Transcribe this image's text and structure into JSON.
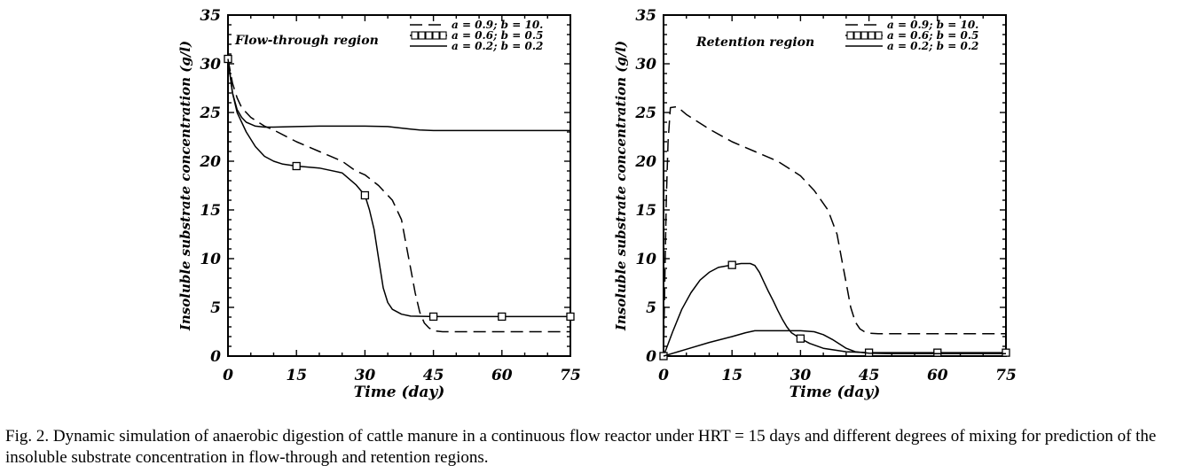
{
  "caption": "Fig. 2. Dynamic simulation of anaerobic digestion of cattle manure in a continuous flow reactor under HRT = 15 days and different degrees of mixing for prediction of the insoluble substrate concentration in flow-through and retention regions.",
  "chart_data": [
    {
      "type": "line",
      "title": "Flow-through region",
      "xlabel": "Time (day)",
      "ylabel": "Insoluble substrate concentration (g/l)",
      "xlim": [
        0,
        75
      ],
      "ylim": [
        0,
        35
      ],
      "xticks": [
        0,
        15,
        30,
        45,
        60,
        75
      ],
      "yticks": [
        0,
        5,
        10,
        15,
        20,
        25,
        30,
        35
      ],
      "legend_position": "top-right",
      "series": [
        {
          "name": "a = 0.9; b = 10.",
          "style": "dashed",
          "x": [
            0,
            1,
            2,
            3,
            5,
            8,
            10,
            15,
            20,
            25,
            28,
            30,
            33,
            36,
            38,
            39,
            40,
            41,
            42,
            43,
            44,
            45,
            47,
            50,
            60,
            75
          ],
          "y": [
            30.5,
            28,
            26.5,
            25.5,
            24.5,
            23.6,
            23.2,
            22,
            21,
            20,
            19,
            18.6,
            17.5,
            16,
            14,
            11.5,
            9,
            6.5,
            4.5,
            3.4,
            2.9,
            2.6,
            2.5,
            2.5,
            2.5,
            2.5
          ]
        },
        {
          "name": "a = 0.6; b = 0.5",
          "style": "solid-square-markers",
          "x": [
            0,
            1,
            2,
            4,
            6,
            8,
            10,
            12,
            15,
            20,
            25,
            28,
            30,
            31,
            32,
            33,
            34,
            35,
            36,
            38,
            40,
            45,
            50,
            60,
            75
          ],
          "y": [
            30.5,
            27,
            25,
            23,
            21.5,
            20.5,
            20,
            19.7,
            19.5,
            19.3,
            18.8,
            17.6,
            16.5,
            15,
            13,
            10,
            7,
            5.5,
            4.8,
            4.3,
            4.1,
            4.05,
            4.05,
            4.05,
            4.05
          ],
          "markers_x": [
            0,
            15,
            30,
            45,
            60,
            75
          ],
          "markers_y": [
            30.5,
            19.5,
            16.5,
            4.05,
            4.05,
            4.05
          ]
        },
        {
          "name": "a = 0.2; b = 0.2",
          "style": "solid",
          "x": [
            0,
            1,
            2,
            3,
            4,
            5,
            6,
            8,
            10,
            15,
            20,
            25,
            30,
            35,
            38,
            40,
            42,
            45,
            50,
            60,
            75
          ],
          "y": [
            30.5,
            27,
            25.3,
            24.5,
            24,
            23.8,
            23.6,
            23.5,
            23.5,
            23.55,
            23.6,
            23.6,
            23.6,
            23.55,
            23.4,
            23.3,
            23.2,
            23.15,
            23.15,
            23.15,
            23.15
          ]
        }
      ]
    },
    {
      "type": "line",
      "title": "Retention region",
      "xlabel": "Time (day)",
      "ylabel": "Insoluble substrate concentration (g/l)",
      "xlim": [
        0,
        75
      ],
      "ylim": [
        0,
        35
      ],
      "xticks": [
        0,
        15,
        30,
        45,
        60,
        75
      ],
      "yticks": [
        0,
        5,
        10,
        15,
        20,
        25,
        30,
        35
      ],
      "legend_position": "top-right",
      "series": [
        {
          "name": "a = 0.9; b = 10.",
          "style": "dashed",
          "x": [
            0,
            0.3,
            0.6,
            1,
            1.5,
            3,
            5,
            10,
            15,
            20,
            25,
            30,
            33,
            36,
            38,
            39,
            40,
            41,
            42,
            43,
            44,
            45,
            47,
            50,
            60,
            75
          ],
          "y": [
            0,
            8,
            16,
            22,
            25.5,
            25.6,
            24.8,
            23.3,
            22,
            21,
            20,
            18.5,
            17,
            15,
            12.5,
            10,
            7.5,
            5,
            3.5,
            2.8,
            2.5,
            2.35,
            2.3,
            2.3,
            2.3,
            2.3
          ]
        },
        {
          "name": "a = 0.6; b = 0.5",
          "style": "solid-square-markers",
          "x": [
            0,
            2,
            4,
            6,
            8,
            10,
            12,
            15,
            17,
            19,
            20,
            21,
            22,
            23,
            24,
            25,
            26,
            27,
            28,
            30,
            32,
            35,
            40,
            45,
            60,
            75
          ],
          "y": [
            0,
            2.5,
            4.8,
            6.5,
            7.8,
            8.6,
            9.1,
            9.35,
            9.5,
            9.5,
            9.3,
            8.6,
            7.6,
            6.6,
            5.7,
            4.7,
            3.8,
            3,
            2.4,
            1.8,
            1.3,
            0.8,
            0.45,
            0.35,
            0.35,
            0.35
          ],
          "markers_x": [
            0,
            15,
            30,
            45,
            60,
            75
          ],
          "markers_y": [
            0,
            9.35,
            1.8,
            0.35,
            0.35,
            0.35
          ]
        },
        {
          "name": "a = 0.2; b = 0.2",
          "style": "solid",
          "x": [
            0,
            5,
            10,
            15,
            18,
            20,
            25,
            30,
            33,
            35,
            37,
            39,
            40,
            42,
            45,
            50,
            60,
            75
          ],
          "y": [
            0,
            0.7,
            1.4,
            2.0,
            2.4,
            2.6,
            2.6,
            2.6,
            2.5,
            2.2,
            1.7,
            1.1,
            0.8,
            0.45,
            0.3,
            0.25,
            0.25,
            0.25
          ]
        }
      ]
    }
  ]
}
